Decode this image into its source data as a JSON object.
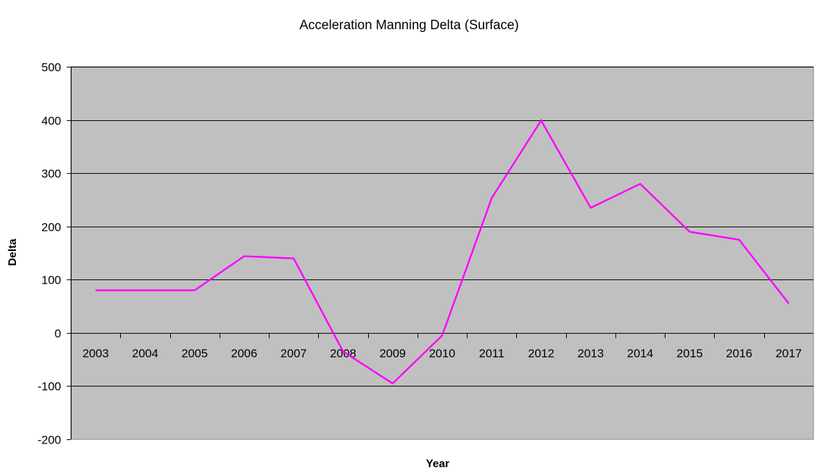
{
  "chart_data": {
    "type": "line",
    "title": "Acceleration Manning Delta (Surface)",
    "xlabel": "Year",
    "ylabel": "Delta",
    "categories": [
      "2003",
      "2004",
      "2005",
      "2006",
      "2007",
      "2008",
      "2009",
      "2010",
      "2011",
      "2012",
      "2013",
      "2014",
      "2015",
      "2016",
      "2017"
    ],
    "series": [
      {
        "values": [
          80,
          80,
          80,
          144,
          140,
          -35,
          -95,
          -5,
          253,
          399,
          235,
          280,
          190,
          175,
          55
        ]
      }
    ],
    "ylim": [
      -200,
      500
    ],
    "yticks": [
      -200,
      -100,
      0,
      100,
      200,
      300,
      400,
      500
    ],
    "grid": true,
    "legend": "none",
    "colors": {
      "plot_background": "#c0c0c0",
      "line": "#ff00ff",
      "grid": "#000000"
    }
  }
}
